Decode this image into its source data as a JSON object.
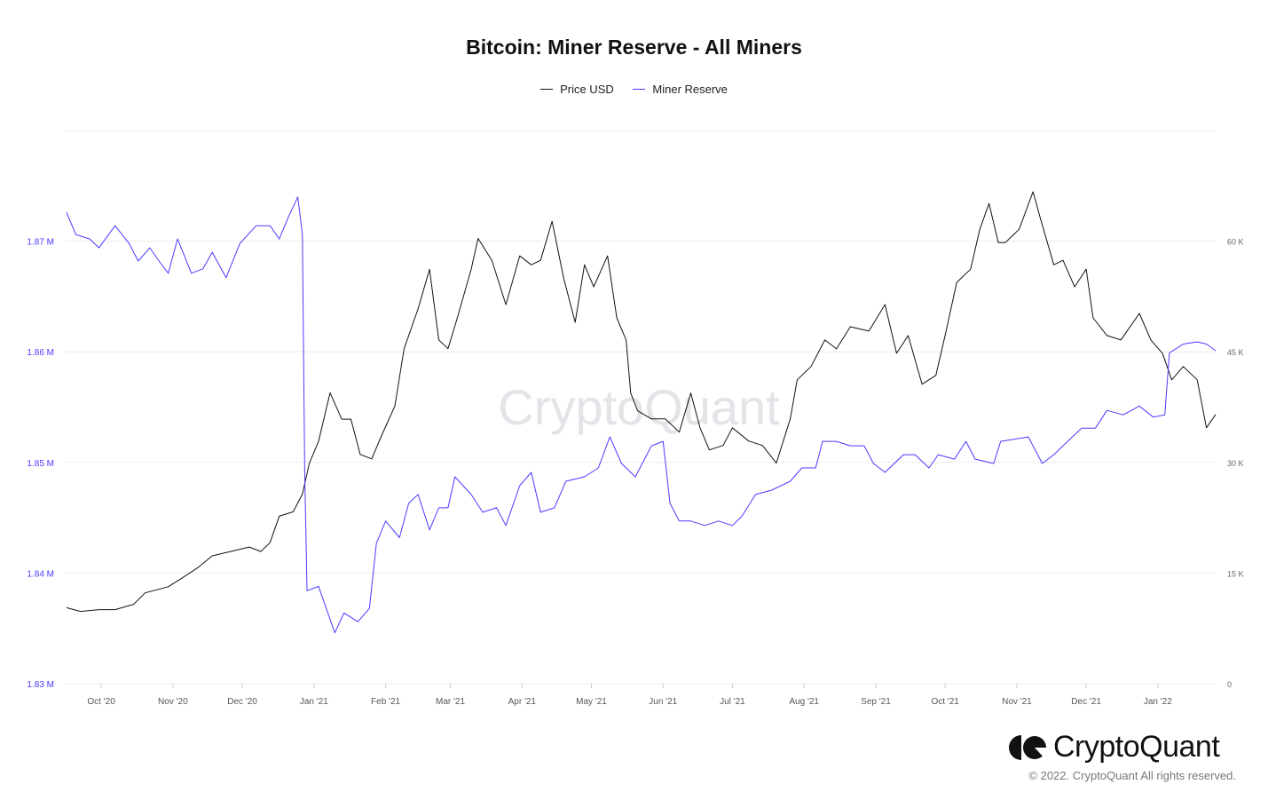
{
  "chart_data": {
    "type": "line",
    "title": "Bitcoin: Miner Reserve - All Miners",
    "legend_position": "top",
    "grid": true,
    "x_ticks": [
      {
        "date": "2020-10-01",
        "label": "Oct '20"
      },
      {
        "date": "2020-11-01",
        "label": "Nov '20"
      },
      {
        "date": "2020-12-01",
        "label": "Dec '20"
      },
      {
        "date": "2021-01-01",
        "label": "Jan '21"
      },
      {
        "date": "2021-02-01",
        "label": "Feb '21"
      },
      {
        "date": "2021-03-01",
        "label": "Mar '21"
      },
      {
        "date": "2021-04-01",
        "label": "Apr '21"
      },
      {
        "date": "2021-05-01",
        "label": "May '21"
      },
      {
        "date": "2021-06-01",
        "label": "Jun '21"
      },
      {
        "date": "2021-07-01",
        "label": "Jul '21"
      },
      {
        "date": "2021-08-01",
        "label": "Aug '21"
      },
      {
        "date": "2021-09-01",
        "label": "Sep '21"
      },
      {
        "date": "2021-10-01",
        "label": "Oct '21"
      },
      {
        "date": "2021-11-01",
        "label": "Nov '21"
      },
      {
        "date": "2021-12-01",
        "label": "Dec '21"
      },
      {
        "date": "2022-01-01",
        "label": "Jan '22"
      }
    ],
    "xlim": [
      "2020-09-16",
      "2022-01-26"
    ],
    "y_left": {
      "ylim": [
        1.83,
        1.88
      ],
      "ticks": [
        1.83,
        1.84,
        1.85,
        1.86,
        1.87
      ],
      "tick_labels": [
        "1.83 M",
        "1.84 M",
        "1.85 M",
        "1.86 M",
        "1.87 M"
      ],
      "color": "#4a3aff"
    },
    "y_right": {
      "ylim": [
        0,
        75000
      ],
      "ticks": [
        0,
        15000,
        30000,
        45000,
        60000
      ],
      "tick_labels": [
        "0",
        "15 K",
        "30 K",
        "45 K",
        "60 K"
      ]
    },
    "series": [
      {
        "name": "Price USD",
        "axis": "right",
        "color": "#111111",
        "points": [
          [
            "2020-09-16",
            10300
          ],
          [
            "2020-09-22",
            9800
          ],
          [
            "2020-09-30",
            10040
          ],
          [
            "2020-10-07",
            10040
          ],
          [
            "2020-10-15",
            10760
          ],
          [
            "2020-10-20",
            12310
          ],
          [
            "2020-10-30",
            13150
          ],
          [
            "2020-11-05",
            14340
          ],
          [
            "2020-11-12",
            15780
          ],
          [
            "2020-11-18",
            17330
          ],
          [
            "2020-11-26",
            17930
          ],
          [
            "2020-12-04",
            18530
          ],
          [
            "2020-12-09",
            17930
          ],
          [
            "2020-12-13",
            19120
          ],
          [
            "2020-12-17",
            22710
          ],
          [
            "2020-12-23",
            23310
          ],
          [
            "2020-12-27",
            25700
          ],
          [
            "2020-12-30",
            29880
          ],
          [
            "2021-01-03",
            32870
          ],
          [
            "2021-01-08",
            39440
          ],
          [
            "2021-01-13",
            35860
          ],
          [
            "2021-01-17",
            35860
          ],
          [
            "2021-01-21",
            31080
          ],
          [
            "2021-01-26",
            30480
          ],
          [
            "2021-01-30",
            33470
          ],
          [
            "2021-02-05",
            37650
          ],
          [
            "2021-02-09",
            45420
          ],
          [
            "2021-02-15",
            50800
          ],
          [
            "2021-02-20",
            56180
          ],
          [
            "2021-02-24",
            46610
          ],
          [
            "2021-02-28",
            45420
          ],
          [
            "2021-03-04",
            49600
          ],
          [
            "2021-03-10",
            56180
          ],
          [
            "2021-03-13",
            60370
          ],
          [
            "2021-03-19",
            57380
          ],
          [
            "2021-03-25",
            51390
          ],
          [
            "2021-03-31",
            58000
          ],
          [
            "2021-04-05",
            56800
          ],
          [
            "2021-04-09",
            57400
          ],
          [
            "2021-04-14",
            62700
          ],
          [
            "2021-04-19",
            55000
          ],
          [
            "2021-04-24",
            49000
          ],
          [
            "2021-04-28",
            56800
          ],
          [
            "2021-05-02",
            53800
          ],
          [
            "2021-05-08",
            58000
          ],
          [
            "2021-05-12",
            49600
          ],
          [
            "2021-05-16",
            46600
          ],
          [
            "2021-05-18",
            39400
          ],
          [
            "2021-05-21",
            37000
          ],
          [
            "2021-05-27",
            35900
          ],
          [
            "2021-06-02",
            35900
          ],
          [
            "2021-06-08",
            34100
          ],
          [
            "2021-06-13",
            39400
          ],
          [
            "2021-06-17",
            34700
          ],
          [
            "2021-06-21",
            31700
          ],
          [
            "2021-06-27",
            32300
          ],
          [
            "2021-07-01",
            34700
          ],
          [
            "2021-07-08",
            32900
          ],
          [
            "2021-07-14",
            32300
          ],
          [
            "2021-07-20",
            29900
          ],
          [
            "2021-07-26",
            35900
          ],
          [
            "2021-07-29",
            41200
          ],
          [
            "2021-08-04",
            43000
          ],
          [
            "2021-08-10",
            46600
          ],
          [
            "2021-08-15",
            45400
          ],
          [
            "2021-08-21",
            48400
          ],
          [
            "2021-08-29",
            47800
          ],
          [
            "2021-09-05",
            51400
          ],
          [
            "2021-09-10",
            44800
          ],
          [
            "2021-09-15",
            47200
          ],
          [
            "2021-09-21",
            40600
          ],
          [
            "2021-09-27",
            41800
          ],
          [
            "2021-10-01",
            47200
          ],
          [
            "2021-10-06",
            54400
          ],
          [
            "2021-10-12",
            56200
          ],
          [
            "2021-10-16",
            61600
          ],
          [
            "2021-10-20",
            65100
          ],
          [
            "2021-10-24",
            59800
          ],
          [
            "2021-10-27",
            59800
          ],
          [
            "2021-11-02",
            61600
          ],
          [
            "2021-11-08",
            66700
          ],
          [
            "2021-11-11",
            63300
          ],
          [
            "2021-11-17",
            56800
          ],
          [
            "2021-11-21",
            57400
          ],
          [
            "2021-11-26",
            53800
          ],
          [
            "2021-12-01",
            56200
          ],
          [
            "2021-12-04",
            49600
          ],
          [
            "2021-12-10",
            47200
          ],
          [
            "2021-12-16",
            46600
          ],
          [
            "2021-12-24",
            50200
          ],
          [
            "2021-12-29",
            46600
          ],
          [
            "2022-01-03",
            44800
          ],
          [
            "2022-01-07",
            41200
          ],
          [
            "2022-01-12",
            43000
          ],
          [
            "2022-01-18",
            41200
          ],
          [
            "2022-01-22",
            34700
          ],
          [
            "2022-01-26",
            36500
          ]
        ]
      },
      {
        "name": "Miner Reserve",
        "axis": "left",
        "color": "#4a3aff",
        "points": [
          [
            "2020-09-16",
            1.8726
          ],
          [
            "2020-09-20",
            1.8706
          ],
          [
            "2020-09-26",
            1.8702
          ],
          [
            "2020-09-30",
            1.8694
          ],
          [
            "2020-10-07",
            1.8714
          ],
          [
            "2020-10-13",
            1.8698
          ],
          [
            "2020-10-17",
            1.8682
          ],
          [
            "2020-10-22",
            1.8694
          ],
          [
            "2020-10-26",
            1.8682
          ],
          [
            "2020-10-30",
            1.8671
          ],
          [
            "2020-11-03",
            1.8702
          ],
          [
            "2020-11-09",
            1.8671
          ],
          [
            "2020-11-14",
            1.8675
          ],
          [
            "2020-11-18",
            1.869
          ],
          [
            "2020-11-24",
            1.8667
          ],
          [
            "2020-11-30",
            1.8698
          ],
          [
            "2020-12-07",
            1.8714
          ],
          [
            "2020-12-13",
            1.8714
          ],
          [
            "2020-12-17",
            1.8702
          ],
          [
            "2020-12-21",
            1.8722
          ],
          [
            "2020-12-25",
            1.874
          ],
          [
            "2020-12-27",
            1.8706
          ],
          [
            "2020-12-28",
            1.8491
          ],
          [
            "2020-12-29",
            1.8384
          ],
          [
            "2021-01-03",
            1.8388
          ],
          [
            "2021-01-10",
            1.8346
          ],
          [
            "2021-01-14",
            1.8364
          ],
          [
            "2021-01-20",
            1.8356
          ],
          [
            "2021-01-25",
            1.8368
          ],
          [
            "2021-01-28",
            1.8427
          ],
          [
            "2021-02-01",
            1.8447
          ],
          [
            "2021-02-07",
            1.8432
          ],
          [
            "2021-02-11",
            1.8463
          ],
          [
            "2021-02-15",
            1.8471
          ],
          [
            "2021-02-20",
            1.8439
          ],
          [
            "2021-02-24",
            1.8459
          ],
          [
            "2021-02-28",
            1.8459
          ],
          [
            "2021-03-03",
            1.8487
          ],
          [
            "2021-03-10",
            1.8471
          ],
          [
            "2021-03-15",
            1.8455
          ],
          [
            "2021-03-21",
            1.8459
          ],
          [
            "2021-03-25",
            1.8443
          ],
          [
            "2021-03-31",
            1.8479
          ],
          [
            "2021-04-05",
            1.8491
          ],
          [
            "2021-04-09",
            1.8455
          ],
          [
            "2021-04-15",
            1.8459
          ],
          [
            "2021-04-20",
            1.8483
          ],
          [
            "2021-04-28",
            1.8487
          ],
          [
            "2021-05-04",
            1.8495
          ],
          [
            "2021-05-09",
            1.8523
          ],
          [
            "2021-05-14",
            1.8499
          ],
          [
            "2021-05-20",
            1.8487
          ],
          [
            "2021-05-27",
            1.8515
          ],
          [
            "2021-06-01",
            1.8519
          ],
          [
            "2021-06-04",
            1.8463
          ],
          [
            "2021-06-08",
            1.8447
          ],
          [
            "2021-06-13",
            1.8447
          ],
          [
            "2021-06-19",
            1.8443
          ],
          [
            "2021-06-25",
            1.8447
          ],
          [
            "2021-07-01",
            1.8443
          ],
          [
            "2021-07-05",
            1.8451
          ],
          [
            "2021-07-11",
            1.8471
          ],
          [
            "2021-07-18",
            1.8475
          ],
          [
            "2021-07-26",
            1.8483
          ],
          [
            "2021-07-31",
            1.8495
          ],
          [
            "2021-08-06",
            1.8495
          ],
          [
            "2021-08-09",
            1.8519
          ],
          [
            "2021-08-15",
            1.8519
          ],
          [
            "2021-08-21",
            1.8515
          ],
          [
            "2021-08-27",
            1.8515
          ],
          [
            "2021-08-31",
            1.8499
          ],
          [
            "2021-09-05",
            1.8491
          ],
          [
            "2021-09-13",
            1.8507
          ],
          [
            "2021-09-18",
            1.8507
          ],
          [
            "2021-09-24",
            1.8495
          ],
          [
            "2021-09-28",
            1.8507
          ],
          [
            "2021-10-05",
            1.8503
          ],
          [
            "2021-10-10",
            1.8519
          ],
          [
            "2021-10-14",
            1.8503
          ],
          [
            "2021-10-22",
            1.8499
          ],
          [
            "2021-10-25",
            1.8519
          ],
          [
            "2021-11-06",
            1.8523
          ],
          [
            "2021-11-12",
            1.8499
          ],
          [
            "2021-11-17",
            1.8507
          ],
          [
            "2021-11-23",
            1.8519
          ],
          [
            "2021-11-29",
            1.8531
          ],
          [
            "2021-12-05",
            1.8531
          ],
          [
            "2021-12-10",
            1.8547
          ],
          [
            "2021-12-17",
            1.8543
          ],
          [
            "2021-12-24",
            1.8551
          ],
          [
            "2021-12-30",
            1.8541
          ],
          [
            "2022-01-04",
            1.8543
          ],
          [
            "2022-01-06",
            1.8599
          ],
          [
            "2022-01-12",
            1.8607
          ],
          [
            "2022-01-18",
            1.8609
          ],
          [
            "2022-01-22",
            1.8607
          ],
          [
            "2022-01-26",
            1.8601
          ]
        ]
      }
    ]
  },
  "watermark": "CryptoQuant",
  "footer": {
    "brand": "CryptoQuant",
    "copyright": "© 2022. CryptoQuant All rights reserved."
  }
}
